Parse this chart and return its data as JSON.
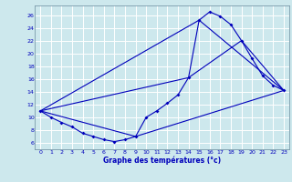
{
  "title": "Graphe des températures (°c)",
  "bg_color": "#cde8ed",
  "line_color": "#0000bb",
  "grid_color": "#ffffff",
  "xlim": [
    -0.5,
    23.5
  ],
  "ylim": [
    5.0,
    27.5
  ],
  "yticks": [
    6,
    8,
    10,
    12,
    14,
    16,
    18,
    20,
    22,
    24,
    26
  ],
  "xticks": [
    0,
    1,
    2,
    3,
    4,
    5,
    6,
    7,
    8,
    9,
    10,
    11,
    12,
    13,
    14,
    15,
    16,
    17,
    18,
    19,
    20,
    21,
    22,
    23
  ],
  "series_main": {
    "x": [
      0,
      1,
      2,
      3,
      4,
      5,
      6,
      7,
      8,
      9,
      10,
      11,
      12,
      13,
      14,
      15,
      16,
      17,
      18,
      19,
      20,
      21,
      22,
      23
    ],
    "y": [
      11,
      10,
      9.2,
      8.5,
      7.5,
      7.0,
      6.5,
      6.2,
      6.5,
      7.0,
      10.0,
      11.0,
      12.2,
      13.5,
      16.2,
      25.2,
      26.5,
      25.8,
      24.5,
      22.0,
      19.2,
      16.5,
      15.0,
      14.2
    ]
  },
  "series_min": {
    "x": [
      0,
      9,
      23
    ],
    "y": [
      11,
      7.0,
      14.2
    ]
  },
  "series_avg": {
    "x": [
      0,
      14,
      19,
      23
    ],
    "y": [
      11,
      16.2,
      22.0,
      14.2
    ]
  },
  "series_max": {
    "x": [
      0,
      15,
      23
    ],
    "y": [
      11,
      25.2,
      14.2
    ]
  }
}
